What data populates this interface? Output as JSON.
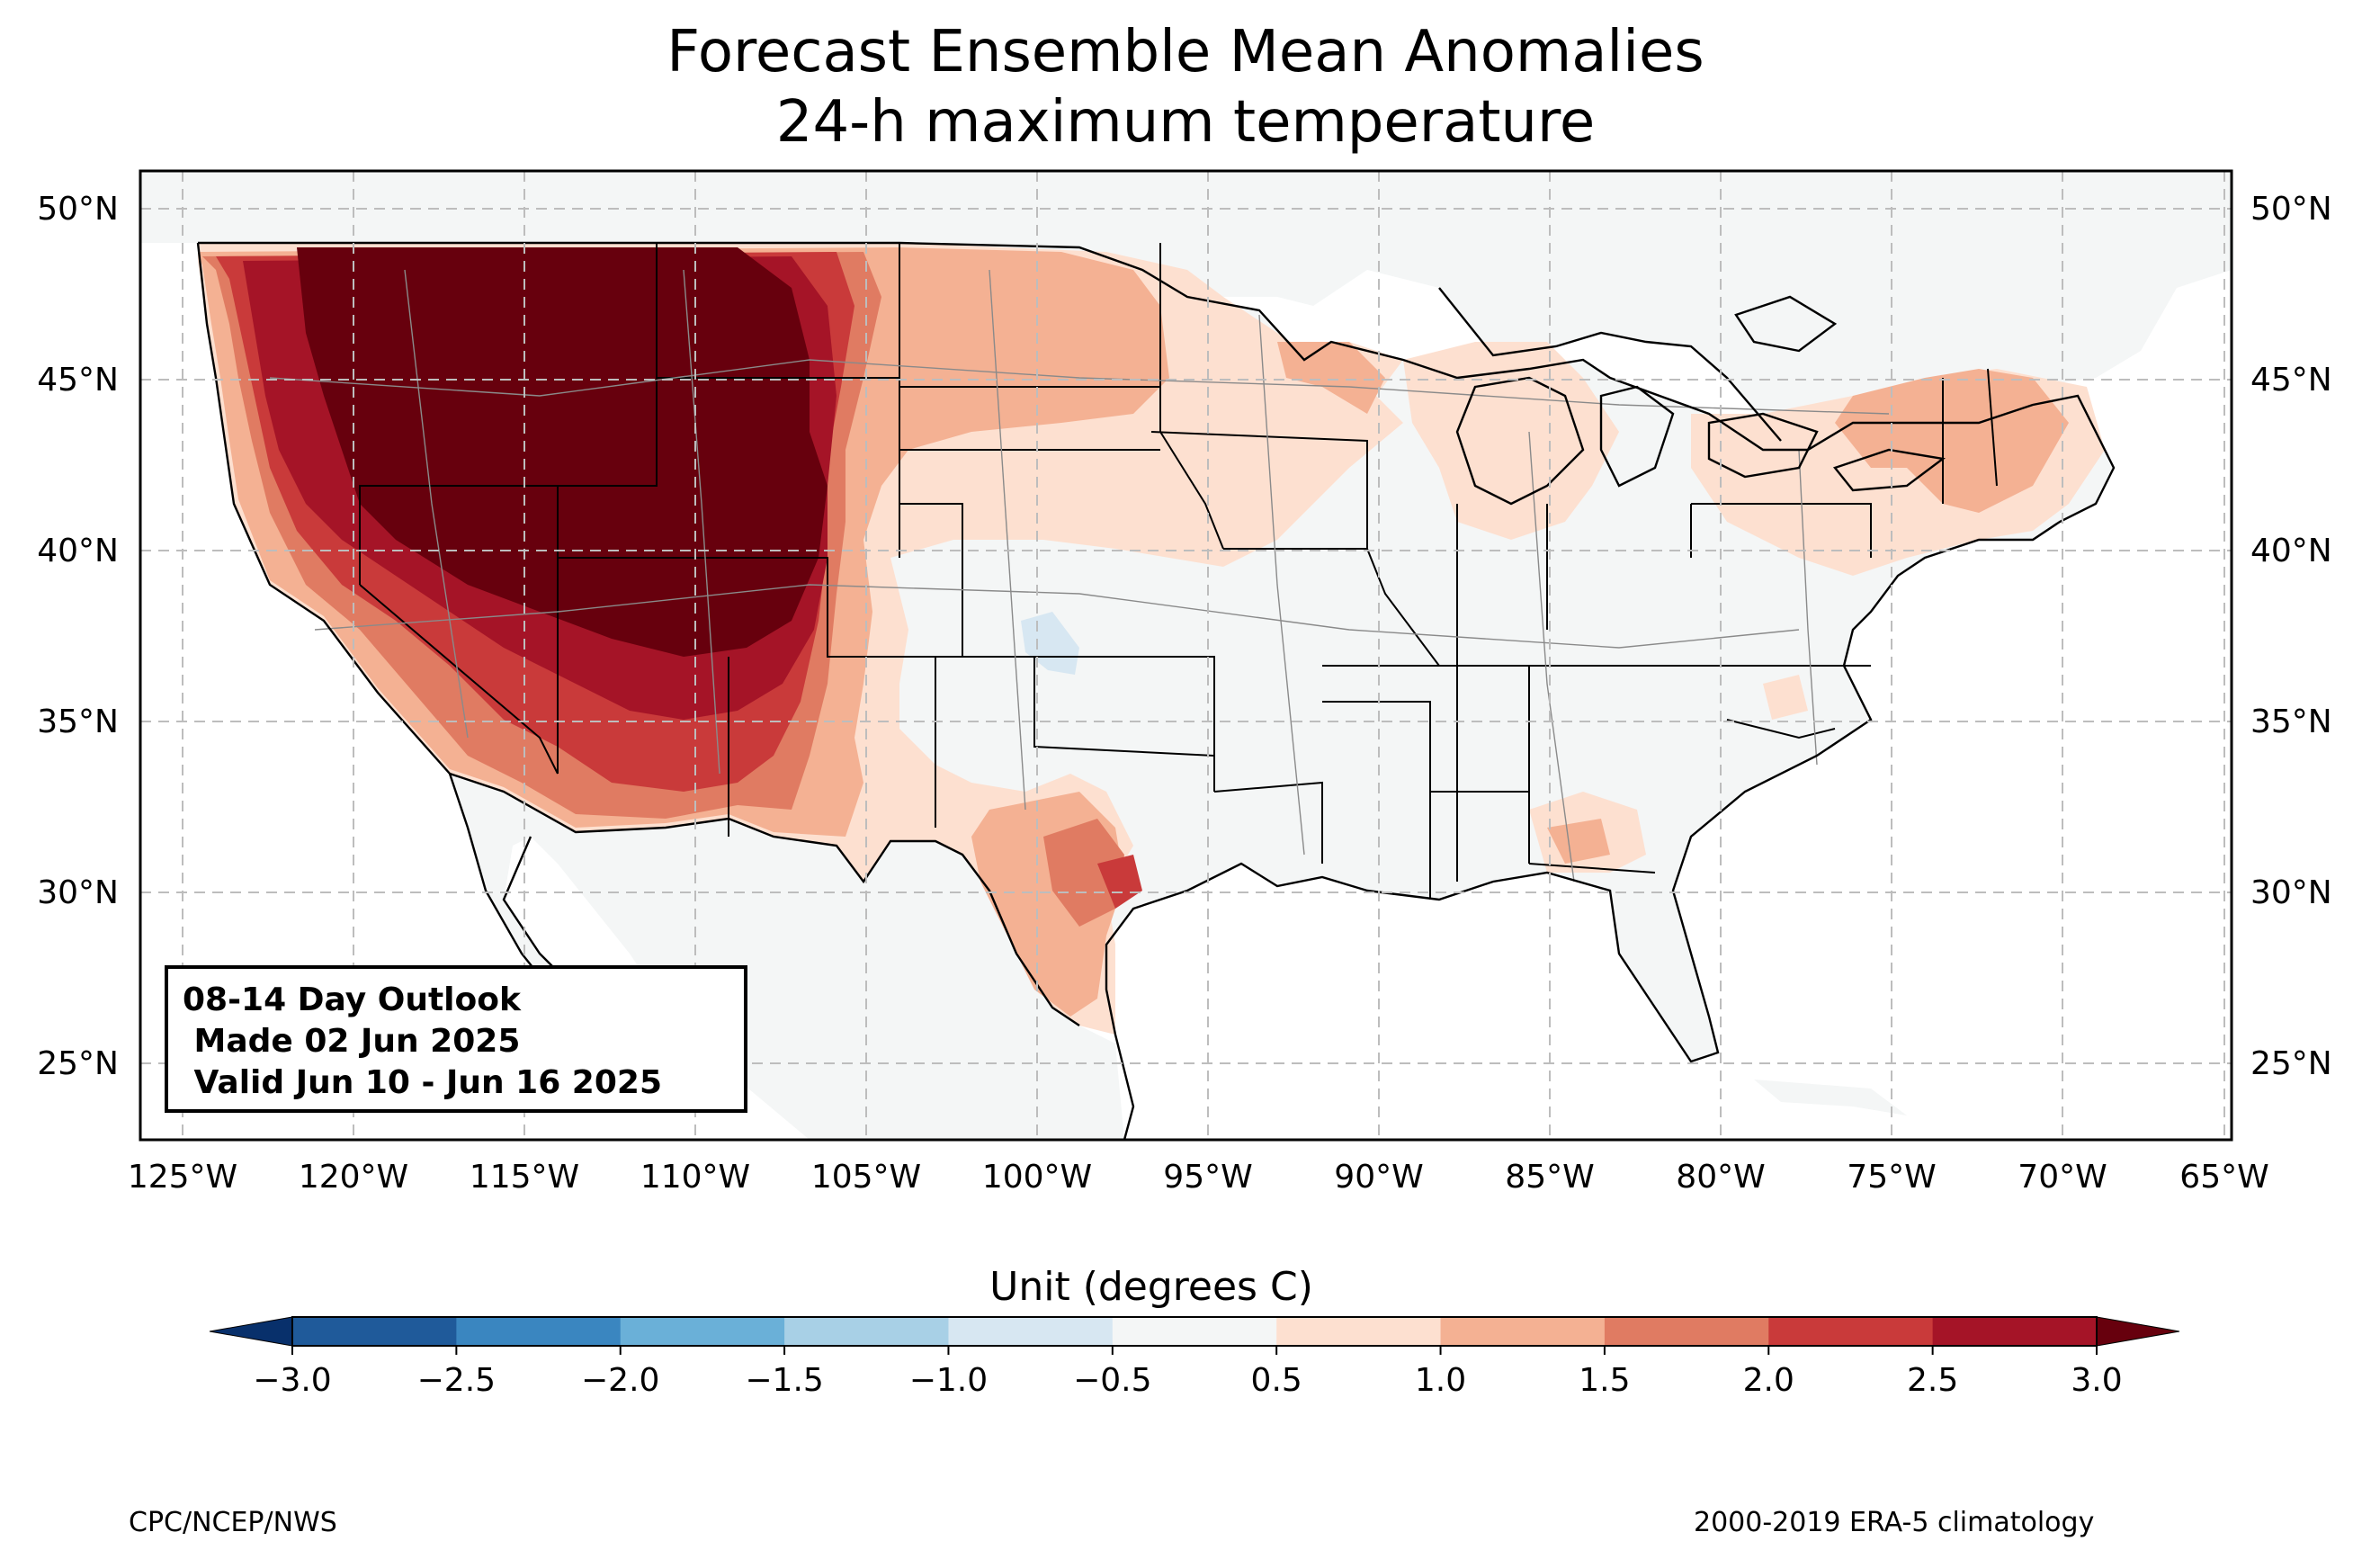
{
  "title_line1": "Forecast Ensemble Mean Anomalies",
  "title_line2": "24-h maximum temperature",
  "outlook_box": {
    "line1": "08-14 Day Outlook",
    "line2": " Made 02 Jun 2025",
    "line3": " Valid Jun 10 - Jun 16 2025"
  },
  "lat_labels": [
    "50°N",
    "45°N",
    "40°N",
    "35°N",
    "30°N",
    "25°N"
  ],
  "lon_labels": [
    "125°W",
    "120°W",
    "115°W",
    "110°W",
    "105°W",
    "100°W",
    "95°W",
    "90°W",
    "85°W",
    "80°W",
    "75°W",
    "70°W",
    "65°W"
  ],
  "colorbar": {
    "label": "Unit (degrees C)",
    "ticks": [
      "−3.0",
      "−2.5",
      "−2.0",
      "−1.5",
      "−1.0",
      "−0.5",
      "0.5",
      "1.0",
      "1.5",
      "2.0",
      "2.5",
      "3.0"
    ],
    "colors": [
      "#08306b",
      "#1f5a9a",
      "#3a86c0",
      "#6ab0d8",
      "#a8d0e6",
      "#d7e7f2",
      "#f4f6f6",
      "#fde0d0",
      "#f4b193",
      "#e07b62",
      "#c93a3a",
      "#a51427",
      "#67000d"
    ]
  },
  "footer_left": "CPC/NCEP/NWS",
  "footer_right": "2000-2019 ERA-5 climatology",
  "map_colors": {
    "ocean": "#ffffff",
    "land": "#f4f6f6",
    "a05": "#fde0d0",
    "a10": "#f4b193",
    "a15": "#e07b62",
    "a20": "#c93a3a",
    "a25": "#a51427",
    "a30": "#67000d",
    "neg": "#d7e7f2"
  }
}
